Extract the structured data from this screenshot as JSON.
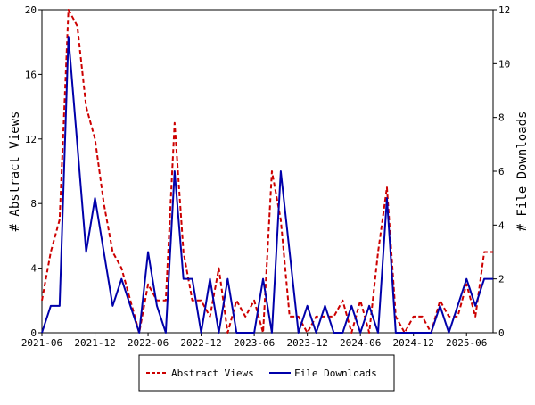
{
  "chart_data": {
    "type": "line",
    "x": [
      "2021-06",
      "2021-07",
      "2021-08",
      "2021-09",
      "2021-10",
      "2021-11",
      "2021-12",
      "2022-01",
      "2022-02",
      "2022-03",
      "2022-04",
      "2022-05",
      "2022-06",
      "2022-07",
      "2022-08",
      "2022-09",
      "2022-10",
      "2022-11",
      "2022-12",
      "2023-01",
      "2023-02",
      "2023-03",
      "2023-04",
      "2023-05",
      "2023-06",
      "2023-07",
      "2023-08",
      "2023-09",
      "2023-10",
      "2023-11",
      "2023-12",
      "2024-01",
      "2024-02",
      "2024-03",
      "2024-04",
      "2024-05",
      "2024-06",
      "2024-07",
      "2024-08",
      "2024-09",
      "2024-10",
      "2024-11",
      "2024-12",
      "2025-01",
      "2025-02",
      "2025-03",
      "2025-04",
      "2025-05",
      "2025-06",
      "2025-07",
      "2025-08",
      "2025-09"
    ],
    "x_ticks": [
      "2021-06",
      "2021-12",
      "2022-06",
      "2022-12",
      "2023-06",
      "2023-12",
      "2024-06",
      "2024-12",
      "2025-06"
    ],
    "series": [
      {
        "name": "Abstract Views",
        "axis": "left",
        "color": "#cc0000",
        "dash": true,
        "values": [
          2,
          5,
          7,
          20,
          19,
          14,
          12,
          8,
          5,
          4,
          2,
          0,
          3,
          2,
          2,
          13,
          5,
          2,
          2,
          1,
          4,
          0,
          2,
          1,
          2,
          0,
          10,
          7,
          1,
          1,
          0,
          1,
          1,
          1,
          2,
          0,
          2,
          0,
          5,
          9,
          1,
          0,
          1,
          1,
          0,
          2,
          1,
          1,
          3,
          1,
          5,
          5
        ]
      },
      {
        "name": "File Downloads",
        "axis": "right",
        "color": "#0000aa",
        "dash": false,
        "values": [
          0,
          1,
          1,
          11,
          7,
          3,
          5,
          3,
          1,
          2,
          1,
          0,
          3,
          1,
          0,
          6,
          2,
          2,
          0,
          2,
          0,
          2,
          0,
          0,
          0,
          2,
          0,
          6,
          3,
          0,
          1,
          0,
          1,
          0,
          0,
          1,
          0,
          1,
          0,
          5,
          0,
          0,
          0,
          0,
          0,
          1,
          0,
          1,
          2,
          1,
          2,
          2
        ]
      }
    ],
    "y_left": {
      "label": "# Abstract Views",
      "min": 0,
      "max": 20,
      "ticks": [
        0,
        4,
        8,
        12,
        16,
        20
      ]
    },
    "y_right": {
      "label": "# File Downloads",
      "min": 0,
      "max": 12,
      "ticks": [
        0,
        2,
        4,
        6,
        8,
        10,
        12
      ]
    },
    "grid": false,
    "legend": {
      "position": "bottom",
      "entries": [
        "Abstract Views",
        "File Downloads"
      ]
    }
  }
}
